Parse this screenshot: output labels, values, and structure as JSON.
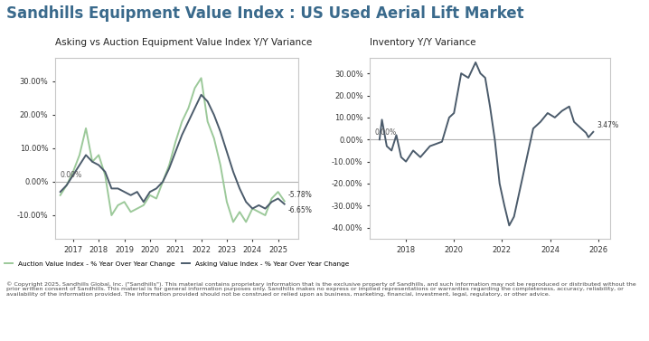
{
  "title": "Sandhills Equipment Value Index : US Used Aerial Lift Market",
  "footer": "© Copyright 2025, Sandhills Global, Inc. (\"Sandhills\"). This material contains proprietary information that is the exclusive property of Sandhills, and such information may not be reproduced or distributed without the prior written consent of Sandhills. This material is for general information purposes only. Sandhills makes no express or implied representations or warranties regarding the completeness, accuracy, reliability, or availability of the information provided. The information provided should not be construed or relied upon as business, marketing, financial, investment, legal, regulatory, or other advice.",
  "chart_data": [
    {
      "type": "line",
      "title": "Asking vs Auction Equipment Value Index Y/Y Variance",
      "x": [
        2016.5,
        2016.75,
        2017.0,
        2017.25,
        2017.5,
        2017.75,
        2018.0,
        2018.25,
        2018.5,
        2018.75,
        2019.0,
        2019.25,
        2019.5,
        2019.75,
        2020.0,
        2020.25,
        2020.5,
        2020.75,
        2021.0,
        2021.25,
        2021.5,
        2021.75,
        2022.0,
        2022.25,
        2022.5,
        2022.75,
        2023.0,
        2023.25,
        2023.5,
        2023.75,
        2024.0,
        2024.25,
        2024.5,
        2024.75,
        2025.0,
        2025.25
      ],
      "series": [
        {
          "name": "Auction Value Index - % Year Over Year Change",
          "color": "#9cc99a",
          "values": [
            -4,
            -1,
            3,
            8,
            16,
            6,
            8,
            2,
            -10,
            -7,
            -6,
            -9,
            -8,
            -7,
            -4,
            -5,
            0,
            5,
            12,
            18,
            22,
            28,
            31,
            18,
            13,
            5,
            -6,
            -12,
            -9,
            -12,
            -8,
            -9,
            -10,
            -5,
            -3,
            -5.78
          ]
        },
        {
          "name": "Asking Value Index - % Year Over Year Change",
          "color": "#4b5b6b",
          "values": [
            -3,
            -1,
            2,
            5,
            8,
            6,
            5,
            3,
            -2,
            -2,
            -3,
            -4,
            -3,
            -6,
            -3,
            -2,
            0,
            4,
            9,
            14,
            18,
            22,
            26,
            24,
            20,
            15,
            9,
            3,
            -2,
            -6,
            -8,
            -7,
            -8,
            -6,
            -5,
            -6.65
          ]
        }
      ],
      "xlim": [
        2016.3,
        2025.8
      ],
      "xticks": [
        2017,
        2018,
        2019,
        2020,
        2021,
        2022,
        2023,
        2024,
        2025
      ],
      "ylim": [
        -17,
        37
      ],
      "yticks": [
        {
          "value": -10,
          "label": "-10.00%"
        },
        {
          "value": 0,
          "label": "0.00%"
        },
        {
          "value": 10,
          "label": "10.00%"
        },
        {
          "value": 20,
          "label": "20.00%"
        },
        {
          "value": 30,
          "label": "30.00%"
        }
      ],
      "reference_line": {
        "value": 0,
        "label": "0.00%"
      },
      "end_labels": [
        {
          "value": -5.78,
          "label": "-5.78%"
        },
        {
          "value": -6.65,
          "label": "-6.65%"
        }
      ],
      "legend": "bottom",
      "grid": false
    },
    {
      "type": "line",
      "title": "Inventory Y/Y Variance",
      "x": [
        2016.9,
        2017.0,
        2017.2,
        2017.4,
        2017.6,
        2017.8,
        2018.0,
        2018.3,
        2018.6,
        2019.0,
        2019.5,
        2019.8,
        2020.0,
        2020.3,
        2020.6,
        2020.9,
        2021.1,
        2021.3,
        2021.5,
        2021.7,
        2021.9,
        2022.1,
        2022.3,
        2022.5,
        2022.7,
        2022.9,
        2023.1,
        2023.3,
        2023.6,
        2023.9,
        2024.2,
        2024.5,
        2024.8,
        2025.0,
        2025.3,
        2025.5,
        2025.6,
        2025.8
      ],
      "series": [
        {
          "color": "#4b5b6b",
          "values": [
            0,
            9,
            -3,
            -5,
            2,
            -8,
            -10,
            -5,
            -8,
            -3,
            -1,
            10,
            12,
            30,
            28,
            35,
            30,
            28,
            15,
            0,
            -20,
            -30,
            -39,
            -35,
            -25,
            -15,
            -5,
            5,
            8,
            12,
            10,
            13,
            15,
            8,
            5,
            3,
            1,
            3.47
          ]
        }
      ],
      "xlim": [
        2016.5,
        2026.5
      ],
      "xticks": [
        2018,
        2020,
        2022,
        2024,
        2026
      ],
      "ylim": [
        -45,
        37
      ],
      "yticks": [
        {
          "value": -40,
          "label": "-40.00%"
        },
        {
          "value": -30,
          "label": "-30.00%"
        },
        {
          "value": -20,
          "label": "-20.00%"
        },
        {
          "value": -10,
          "label": "-10.00%"
        },
        {
          "value": 0,
          "label": "0.00%"
        },
        {
          "value": 10,
          "label": "10.00%"
        },
        {
          "value": 20,
          "label": "20.00%"
        },
        {
          "value": 30,
          "label": "30.00%"
        }
      ],
      "reference_line": {
        "value": 0,
        "label": "0.00%"
      },
      "end_labels": [
        {
          "value": 3.47,
          "label": "3.47%"
        }
      ],
      "grid": false
    }
  ]
}
